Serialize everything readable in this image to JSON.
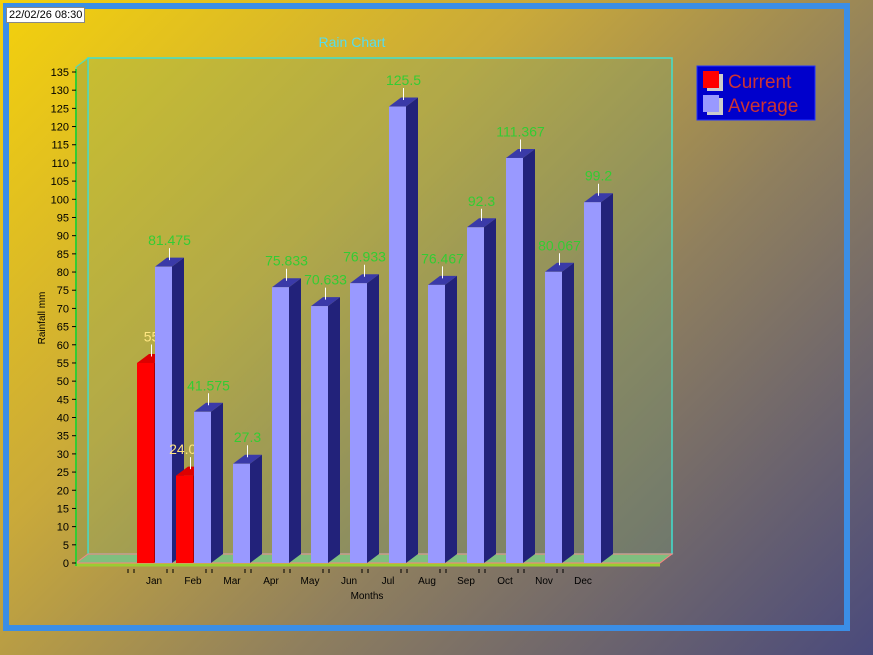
{
  "timestamp": "22/02/26 08:30",
  "chart_data": {
    "type": "bar",
    "title": "Rain Chart",
    "xlabel": "Months",
    "ylabel": "Rainfall mm",
    "ylim": [
      0,
      135
    ],
    "y_ticks": [
      0,
      5,
      10,
      15,
      20,
      25,
      30,
      35,
      40,
      45,
      50,
      55,
      60,
      65,
      70,
      75,
      80,
      85,
      90,
      95,
      100,
      105,
      110,
      115,
      120,
      125,
      130,
      135
    ],
    "categories": [
      "Jan",
      "Feb",
      "Mar",
      "Apr",
      "May",
      "Jun",
      "Jul",
      "Aug",
      "Sep",
      "Oct",
      "Nov",
      "Dec"
    ],
    "series": [
      {
        "name": "Current",
        "color": "#ff0000",
        "label_color": "#ffe680",
        "values": [
          55,
          24.024,
          null,
          null,
          null,
          null,
          null,
          null,
          null,
          null,
          null,
          null
        ],
        "labels": [
          "55",
          "24.024",
          "",
          "",
          "",
          "",
          "",
          "",
          "",
          "",
          "",
          ""
        ]
      },
      {
        "name": "Average",
        "color": "#9999ff",
        "label_color": "#33cc33",
        "values": [
          81.475,
          41.575,
          27.3,
          75.833,
          70.633,
          76.933,
          125.5,
          76.467,
          92.3,
          111.367,
          80.067,
          99.2
        ],
        "labels": [
          "81.475",
          "41.575",
          "27.3",
          "75.833",
          "70.633",
          "76.933",
          "125.5",
          "76.467",
          "92.3",
          "111.367",
          "80.067",
          "99.2"
        ]
      }
    ],
    "legend_position": "top-right",
    "colors": {
      "title": "#55ddee",
      "legend_text": "#cc3333",
      "legend_bg": "#0000cc"
    }
  }
}
